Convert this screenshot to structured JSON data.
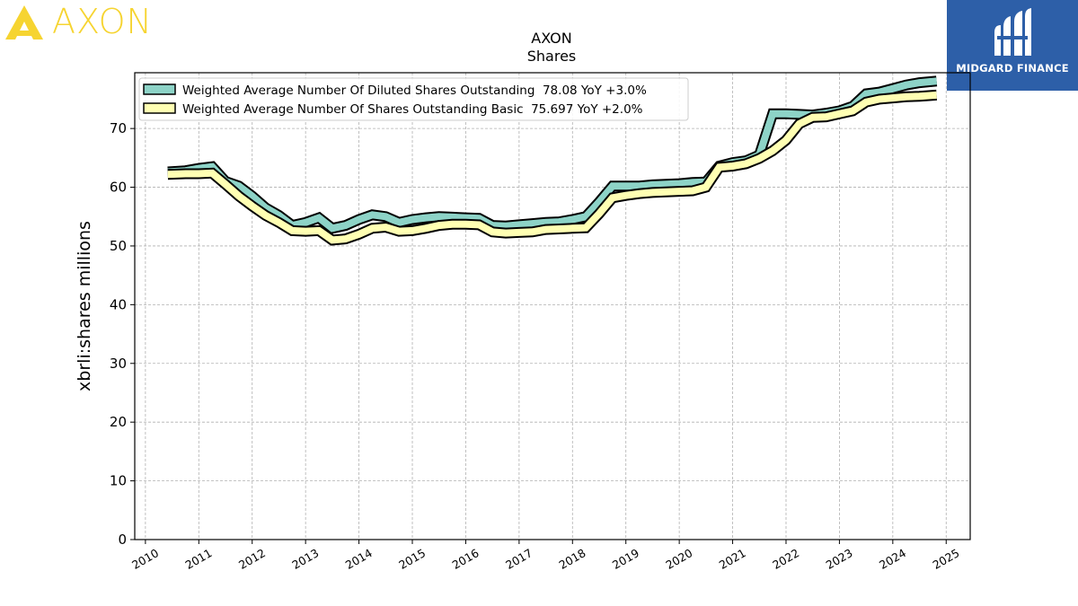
{
  "logo": {
    "text": "AXON",
    "color": "#f6d431"
  },
  "brand": {
    "text": "MIDGARD FINANCE",
    "color": "#2d5fa8"
  },
  "chart_data": {
    "type": "line",
    "title": "AXON",
    "subtitle": "Shares",
    "xlabel": "",
    "ylabel": "xbrli:shares millions",
    "xlim": [
      2009.8,
      2025.45
    ],
    "ylim": [
      0,
      79.5
    ],
    "xticks": [
      "2010",
      "2011",
      "2012",
      "2013",
      "2014",
      "2015",
      "2016",
      "2017",
      "2018",
      "2019",
      "2020",
      "2021",
      "2022",
      "2023",
      "2024",
      "2025"
    ],
    "yticks": [
      "0",
      "10",
      "20",
      "30",
      "40",
      "50",
      "60",
      "70"
    ],
    "grid": true,
    "legend_position": "top-left",
    "series": [
      {
        "name": "Weighted Average Number Of Diluted Shares Outstanding  78.08 YoY +3.0%",
        "color": "#8dd3c7",
        "x": [
          2010.42,
          2010.75,
          2011.0,
          2011.25,
          2011.5,
          2011.75,
          2012.0,
          2012.25,
          2012.5,
          2012.75,
          2013.0,
          2013.25,
          2013.5,
          2013.75,
          2014.0,
          2014.25,
          2014.5,
          2014.75,
          2015.0,
          2015.25,
          2015.5,
          2015.75,
          2016.0,
          2016.25,
          2016.5,
          2016.75,
          2017.0,
          2017.25,
          2017.5,
          2017.75,
          2018.0,
          2018.25,
          2018.5,
          2018.75,
          2019.0,
          2019.25,
          2019.5,
          2019.75,
          2020.0,
          2020.25,
          2020.5,
          2020.75,
          2021.0,
          2021.25,
          2021.5,
          2021.75,
          2022.0,
          2022.25,
          2022.5,
          2022.75,
          2023.0,
          2023.25,
          2023.5,
          2023.75,
          2024.0,
          2024.25,
          2024.5,
          2024.82
        ],
        "y": [
          62.6,
          62.8,
          63.2,
          63.5,
          61.0,
          60.2,
          58.5,
          56.5,
          55.2,
          53.5,
          54.0,
          54.8,
          53.0,
          53.5,
          54.5,
          55.3,
          55.0,
          54.0,
          54.5,
          54.8,
          55.0,
          54.9,
          54.8,
          54.7,
          53.5,
          53.4,
          53.6,
          53.8,
          54.0,
          54.1,
          54.5,
          55.0,
          57.5,
          60.2,
          60.2,
          60.2,
          60.4,
          60.5,
          60.6,
          60.8,
          60.9,
          63.6,
          64.2,
          64.5,
          65.5,
          72.5,
          72.5,
          72.4,
          72.3,
          72.6,
          73.0,
          73.8,
          75.9,
          76.2,
          76.8,
          77.4,
          77.8,
          78.08
        ]
      },
      {
        "name": "Weighted Average Number Of Shares Outstanding Basic  75.697 YoY +2.0%",
        "color": "#ffffb3",
        "x": [
          2010.42,
          2010.75,
          2011.0,
          2011.25,
          2011.5,
          2011.75,
          2012.0,
          2012.25,
          2012.5,
          2012.75,
          2013.0,
          2013.25,
          2013.5,
          2013.75,
          2014.0,
          2014.25,
          2014.5,
          2014.75,
          2015.0,
          2015.25,
          2015.5,
          2015.75,
          2016.0,
          2016.25,
          2016.5,
          2016.75,
          2017.0,
          2017.25,
          2017.5,
          2017.75,
          2018.0,
          2018.25,
          2018.5,
          2018.75,
          2019.0,
          2019.25,
          2019.5,
          2019.75,
          2020.0,
          2020.25,
          2020.5,
          2020.75,
          2021.0,
          2021.25,
          2021.5,
          2021.75,
          2022.0,
          2022.25,
          2022.5,
          2022.75,
          2023.0,
          2023.25,
          2023.5,
          2023.75,
          2024.0,
          2024.25,
          2024.5,
          2024.82
        ],
        "y": [
          62.2,
          62.3,
          62.3,
          62.4,
          60.5,
          58.5,
          56.8,
          55.2,
          54.0,
          52.6,
          52.5,
          52.6,
          51.0,
          51.2,
          52.0,
          53.0,
          53.2,
          52.5,
          52.6,
          53.0,
          53.5,
          53.7,
          53.7,
          53.6,
          52.4,
          52.2,
          52.3,
          52.4,
          52.8,
          52.9,
          53.0,
          53.1,
          55.5,
          58.2,
          58.6,
          58.9,
          59.1,
          59.2,
          59.3,
          59.4,
          60.0,
          63.4,
          63.6,
          64.0,
          64.9,
          66.2,
          68.0,
          70.8,
          71.9,
          72.0,
          72.5,
          73.0,
          74.5,
          75.0,
          75.2,
          75.4,
          75.5,
          75.697
        ]
      }
    ]
  }
}
